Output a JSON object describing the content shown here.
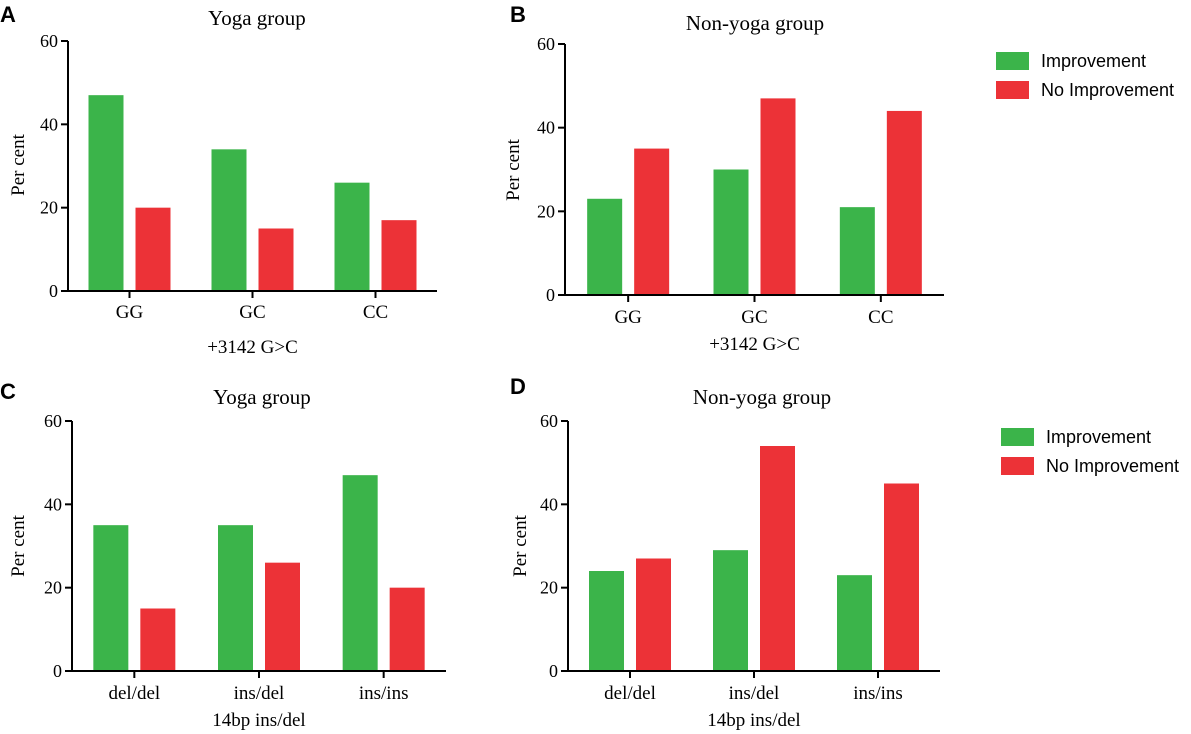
{
  "colors": {
    "improvement": "#3bb44a",
    "no_improvement": "#ec3237",
    "axis": "#000000"
  },
  "chart_data": [
    {
      "panel": "A",
      "type": "bar",
      "title": "Yoga group",
      "xlabel": "+3142 G>C",
      "ylabel": "Per cent",
      "ylim": [
        0,
        60
      ],
      "yticks": [
        0,
        20,
        40,
        60
      ],
      "grid": false,
      "categories": [
        "GG",
        "GC",
        "CC"
      ],
      "series": [
        {
          "name": "Improvement",
          "values": [
            47,
            34,
            26
          ]
        },
        {
          "name": "No Improvement",
          "values": [
            20,
            15,
            17
          ]
        }
      ]
    },
    {
      "panel": "B",
      "type": "bar",
      "title": "Non-yoga group",
      "xlabel": "+3142 G>C",
      "ylabel": "Per cent",
      "ylim": [
        0,
        60
      ],
      "yticks": [
        0,
        20,
        40,
        60
      ],
      "grid": false,
      "categories": [
        "GG",
        "GC",
        "CC"
      ],
      "series": [
        {
          "name": "Improvement",
          "values": [
            23,
            30,
            21
          ]
        },
        {
          "name": "No Improvement",
          "values": [
            35,
            47,
            44
          ]
        }
      ],
      "legend": {
        "placement": "right",
        "entries": [
          "Improvement",
          "No Improvement"
        ]
      }
    },
    {
      "panel": "C",
      "type": "bar",
      "title": "Yoga group",
      "xlabel": "14bp ins/del",
      "ylabel": "Per cent",
      "ylim": [
        0,
        60
      ],
      "yticks": [
        0,
        20,
        40,
        60
      ],
      "grid": false,
      "categories": [
        "del/del",
        "ins/del",
        "ins/ins"
      ],
      "series": [
        {
          "name": "Improvement",
          "values": [
            35,
            35,
            47
          ]
        },
        {
          "name": "No Improvement",
          "values": [
            15,
            26,
            20
          ]
        }
      ]
    },
    {
      "panel": "D",
      "type": "bar",
      "title": "Non-yoga group",
      "xlabel": "14bp ins/del",
      "ylabel": "Per cent",
      "ylim": [
        0,
        60
      ],
      "yticks": [
        0,
        20,
        40,
        60
      ],
      "grid": false,
      "categories": [
        "del/del",
        "ins/del",
        "ins/ins"
      ],
      "series": [
        {
          "name": "Improvement",
          "values": [
            24,
            29,
            23
          ]
        },
        {
          "name": "No Improvement",
          "values": [
            27,
            54,
            45
          ]
        }
      ],
      "legend": {
        "placement": "right",
        "entries": [
          "Improvement",
          "No Improvement"
        ]
      }
    }
  ]
}
